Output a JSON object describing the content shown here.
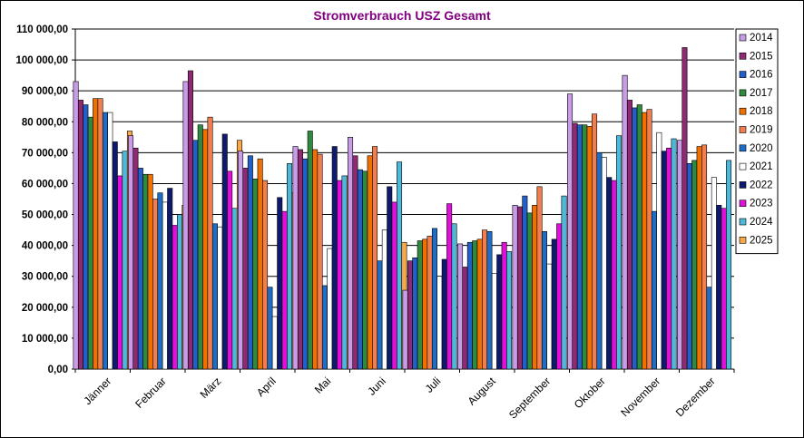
{
  "chart_data": {
    "type": "bar",
    "title": "Stromverbrauch USZ Gesamt",
    "xlabel": "",
    "ylabel": "",
    "ylim": [
      0,
      110000
    ],
    "y_ticks": [
      "0,00",
      "10 000,00",
      "20 000,00",
      "30 000,00",
      "40 000,00",
      "50 000,00",
      "60 000,00",
      "70 000,00",
      "80 000,00",
      "90 000,00",
      "100 000,00",
      "110 000,00"
    ],
    "grid": "horizontal",
    "legend_position": "right",
    "categories": [
      "Jänner",
      "Februar",
      "März",
      "April",
      "Mai",
      "Juni",
      "Juli",
      "August",
      "September",
      "Oktober",
      "November",
      "Dezember"
    ],
    "series": [
      {
        "name": "2014",
        "color": "#C89CE6",
        "values": [
          93000,
          75500,
          93000,
          70500,
          72000,
          75000,
          25500,
          40500,
          53000,
          89000,
          95000,
          74000
        ]
      },
      {
        "name": "2015",
        "color": "#8E2A72",
        "values": [
          87000,
          71500,
          96500,
          65000,
          71000,
          69000,
          35000,
          33000,
          52500,
          79500,
          87000,
          104000
        ]
      },
      {
        "name": "2016",
        "color": "#2060C8",
        "values": [
          85500,
          65000,
          74000,
          69000,
          68000,
          64500,
          36000,
          41000,
          56000,
          79000,
          84500,
          66500
        ]
      },
      {
        "name": "2017",
        "color": "#2E8A3E",
        "values": [
          81500,
          63000,
          79000,
          61500,
          77000,
          64000,
          41500,
          41500,
          50500,
          79000,
          85500,
          67500
        ]
      },
      {
        "name": "2018",
        "color": "#F07000",
        "values": [
          87500,
          63000,
          77500,
          68000,
          71000,
          69000,
          42000,
          42000,
          53000,
          78500,
          83000,
          72000
        ]
      },
      {
        "name": "2019",
        "color": "#F07E4E",
        "values": [
          87500,
          55000,
          81500,
          61000,
          69500,
          72000,
          43000,
          45000,
          59000,
          82500,
          84000,
          72500
        ]
      },
      {
        "name": "2020",
        "color": "#1E6EC8",
        "values": [
          83000,
          57000,
          47000,
          26500,
          27000,
          35000,
          45500,
          44500,
          44500,
          70000,
          51000,
          26500
        ]
      },
      {
        "name": "2021",
        "color": "#FFFFFF",
        "values": [
          83000,
          54000,
          46000,
          17000,
          39000,
          45000,
          30000,
          31000,
          34000,
          68500,
          76500,
          62000
        ]
      },
      {
        "name": "2022",
        "color": "#0E1A6E",
        "values": [
          73500,
          58500,
          76000,
          55500,
          72000,
          59000,
          35500,
          37000,
          42000,
          62000,
          70500,
          53000
        ]
      },
      {
        "name": "2023",
        "color": "#E010D8",
        "values": [
          62500,
          46500,
          64000,
          51000,
          61000,
          54000,
          53500,
          41000,
          47000,
          61000,
          71500,
          52000
        ]
      },
      {
        "name": "2024",
        "color": "#4FB8D8",
        "values": [
          70500,
          50000,
          52000,
          66500,
          62500,
          67000,
          47000,
          38000,
          56000,
          75500,
          74500,
          67500
        ]
      },
      {
        "name": "2025",
        "color": "#F8A848",
        "values": [
          77000,
          53000,
          74000,
          57000,
          62500,
          41000,
          null,
          null,
          null,
          null,
          null,
          null
        ]
      }
    ]
  }
}
